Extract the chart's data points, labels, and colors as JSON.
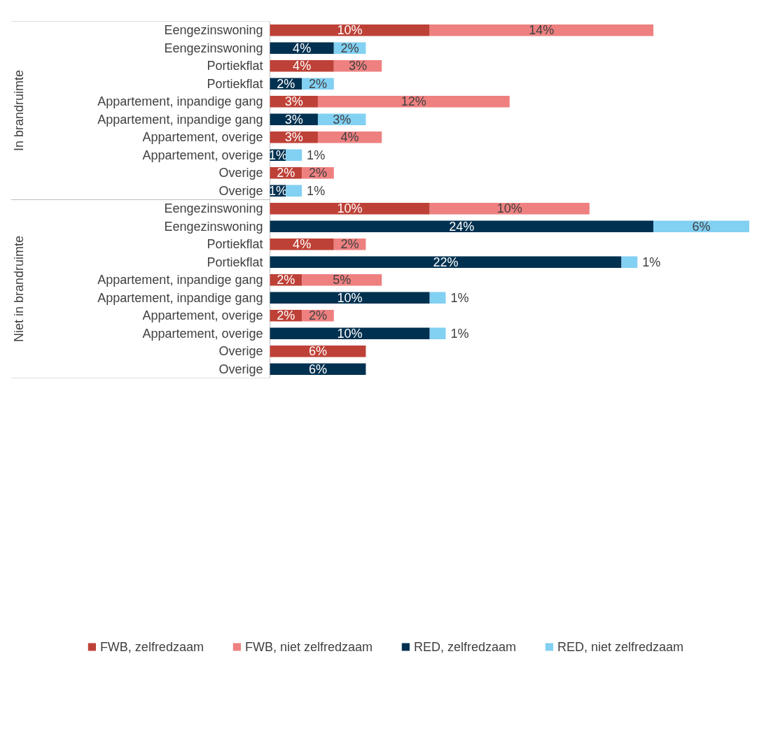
{
  "chart_data": {
    "type": "bar",
    "orientation": "horizontal",
    "stacked": true,
    "legend": "bottom",
    "categories": [
      "Eengezinswoning",
      "Eengezinswoning",
      "Portiekflat",
      "Portiekflat",
      "Appartement, inpandige gang",
      "Appartement, inpandige gang",
      "Appartement, overige",
      "Appartement, overige",
      "Overige",
      "Overige",
      "Eengezinswoning",
      "Eengezinswoning",
      "Portiekflat",
      "Portiekflat",
      "Appartement, inpandige gang",
      "Appartement, inpandige gang",
      "Appartement, overige",
      "Appartement, overige",
      "Overige",
      "Overige"
    ],
    "series": [
      {
        "name": "FWB, zelfredzaam",
        "color": "#be4137",
        "values": [
          10,
          null,
          4,
          null,
          3,
          null,
          3,
          null,
          2,
          null,
          10,
          null,
          4,
          null,
          2,
          null,
          2,
          null,
          6,
          null
        ],
        "value_labels": [
          "10%",
          null,
          "4%",
          null,
          "3%",
          null,
          "3%",
          null,
          "2%",
          null,
          "10%",
          null,
          "4%",
          null,
          "2%",
          null,
          "2%",
          null,
          "6%",
          null
        ]
      },
      {
        "name": "FWB, niet zelfredzaam",
        "color": "#ee8080",
        "values": [
          14,
          null,
          3,
          null,
          12,
          null,
          4,
          null,
          2,
          null,
          10,
          null,
          2,
          null,
          5,
          null,
          2,
          null,
          null,
          null
        ],
        "value_labels": [
          "14%",
          null,
          "3%",
          null,
          "12%",
          null,
          "4%",
          null,
          "2%",
          null,
          "10%",
          null,
          "2%",
          null,
          "5%",
          null,
          "2%",
          null,
          null,
          null
        ]
      },
      {
        "name": "RED, zelfredzaam",
        "color": "#003150",
        "values": [
          null,
          4,
          null,
          2,
          null,
          3,
          null,
          1,
          null,
          1,
          null,
          24,
          null,
          22,
          null,
          10,
          null,
          10,
          null,
          6
        ],
        "value_labels": [
          null,
          "4%",
          null,
          "2%",
          null,
          "3%",
          null,
          "1%",
          null,
          "1%",
          null,
          "24%",
          null,
          "22%",
          null,
          "10%",
          null,
          "10%",
          null,
          "6%"
        ]
      },
      {
        "name": "RED, niet zelfredzaam",
        "color": "#82d0f2",
        "values": [
          null,
          2,
          null,
          2,
          null,
          3,
          null,
          1,
          null,
          1,
          null,
          6,
          null,
          1,
          null,
          1,
          null,
          1,
          null,
          null
        ],
        "value_labels": [
          null,
          "2%",
          null,
          "2%",
          null,
          "3%",
          null,
          "1%",
          null,
          "1%",
          null,
          "6%",
          null,
          "1%",
          null,
          "1%",
          null,
          "1%",
          null,
          null
        ]
      }
    ],
    "annotations": [
      "In brandruimte",
      "Niet in brandruimte"
    ]
  }
}
